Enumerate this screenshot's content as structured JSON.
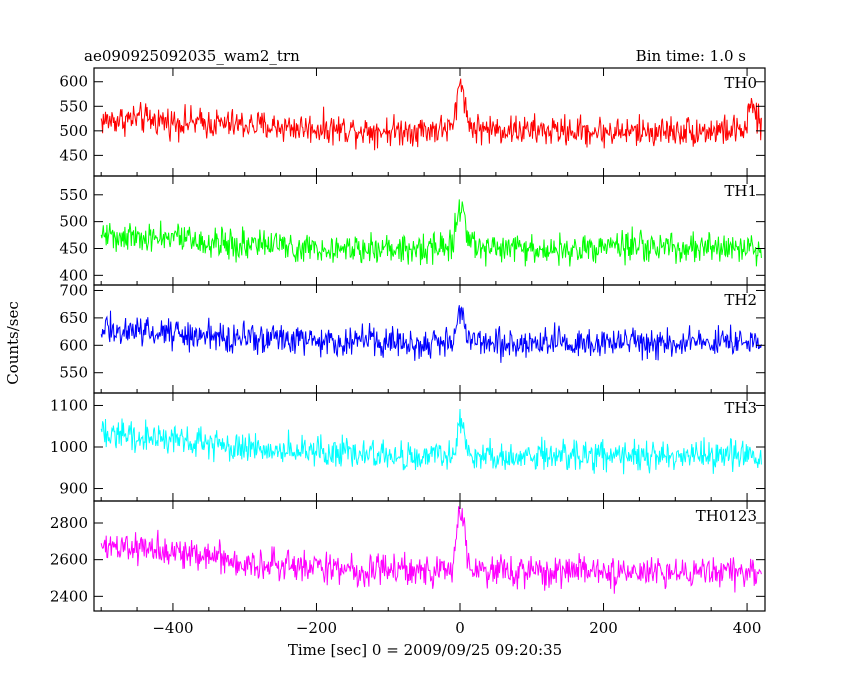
{
  "header": {
    "left_title": "ae090925092035_wam2_trn",
    "right_title": "Bin time: 1.0 s"
  },
  "chart_data": {
    "type": "line",
    "xlabel": "Time [sec] 0 = 2009/09/25 09:20:35",
    "ylabel": "Counts/sec",
    "xlim": [
      -510,
      425
    ],
    "x_ticks": [
      -400,
      -200,
      0,
      200,
      400
    ],
    "bin_time_s": 1.0,
    "panels": [
      {
        "name": "TH0",
        "color": "#ff0000",
        "ylim": [
          408,
          628
        ],
        "y_ticks": [
          450,
          500,
          550,
          600
        ],
        "series": {
          "name": "TH0",
          "x": [
            -500,
            -450,
            -400,
            -350,
            -300,
            -250,
            -200,
            -150,
            -100,
            -50,
            -10,
            0,
            5,
            10,
            20,
            50,
            100,
            150,
            200,
            250,
            300,
            350,
            400,
            405,
            420
          ],
          "y": [
            520,
            525,
            518,
            515,
            512,
            508,
            505,
            503,
            500,
            502,
            505,
            600,
            590,
            520,
            505,
            503,
            500,
            500,
            498,
            498,
            500,
            500,
            502,
            560,
            500
          ]
        }
      },
      {
        "name": "TH1",
        "color": "#00ff00",
        "ylim": [
          382,
          585
        ],
        "y_ticks": [
          400,
          450,
          500,
          550
        ],
        "series": {
          "name": "TH1",
          "x": [
            -500,
            -450,
            -400,
            -350,
            -300,
            -250,
            -200,
            -150,
            -100,
            -50,
            -10,
            0,
            5,
            10,
            20,
            50,
            100,
            150,
            200,
            250,
            300,
            350,
            400,
            420
          ],
          "y": [
            478,
            472,
            468,
            462,
            458,
            455,
            452,
            450,
            450,
            451,
            455,
            540,
            520,
            480,
            455,
            450,
            448,
            450,
            452,
            452,
            450,
            450,
            452,
            450
          ]
        }
      },
      {
        "name": "TH2",
        "color": "#0000ff",
        "ylim": [
          513,
          710
        ],
        "y_ticks": [
          550,
          600,
          650,
          700
        ],
        "series": {
          "name": "TH2",
          "x": [
            -500,
            -450,
            -400,
            -350,
            -300,
            -250,
            -200,
            -150,
            -100,
            -50,
            -10,
            0,
            5,
            10,
            20,
            50,
            100,
            150,
            200,
            250,
            300,
            350,
            400,
            420
          ],
          "y": [
            630,
            625,
            622,
            618,
            615,
            612,
            610,
            608,
            606,
            606,
            610,
            660,
            650,
            620,
            608,
            606,
            605,
            605,
            606,
            605,
            605,
            605,
            606,
            605
          ]
        }
      },
      {
        "name": "TH3",
        "color": "#00ffff",
        "ylim": [
          870,
          1130
        ],
        "y_ticks": [
          900,
          1000,
          1100
        ],
        "series": {
          "name": "TH3",
          "x": [
            -500,
            -450,
            -400,
            -350,
            -300,
            -250,
            -200,
            -150,
            -100,
            -50,
            -10,
            0,
            5,
            10,
            20,
            50,
            100,
            150,
            200,
            250,
            300,
            350,
            400,
            420
          ],
          "y": [
            1030,
            1025,
            1020,
            1010,
            1000,
            995,
            990,
            985,
            982,
            980,
            982,
            1060,
            1040,
            990,
            982,
            980,
            978,
            978,
            978,
            978,
            980,
            982,
            985,
            980
          ]
        }
      },
      {
        "name": "TH0123",
        "color": "#ff00ff",
        "ylim": [
          2320,
          2920
        ],
        "y_ticks": [
          2400,
          2600,
          2800
        ],
        "series": {
          "name": "TH0123",
          "x": [
            -500,
            -450,
            -400,
            -350,
            -300,
            -250,
            -200,
            -150,
            -100,
            -50,
            -10,
            0,
            5,
            10,
            20,
            50,
            100,
            150,
            200,
            250,
            300,
            350,
            400,
            420
          ],
          "y": [
            2680,
            2660,
            2640,
            2610,
            2580,
            2570,
            2560,
            2550,
            2540,
            2535,
            2545,
            2880,
            2820,
            2600,
            2545,
            2535,
            2530,
            2530,
            2530,
            2528,
            2530,
            2532,
            2545,
            2530
          ]
        }
      }
    ]
  }
}
